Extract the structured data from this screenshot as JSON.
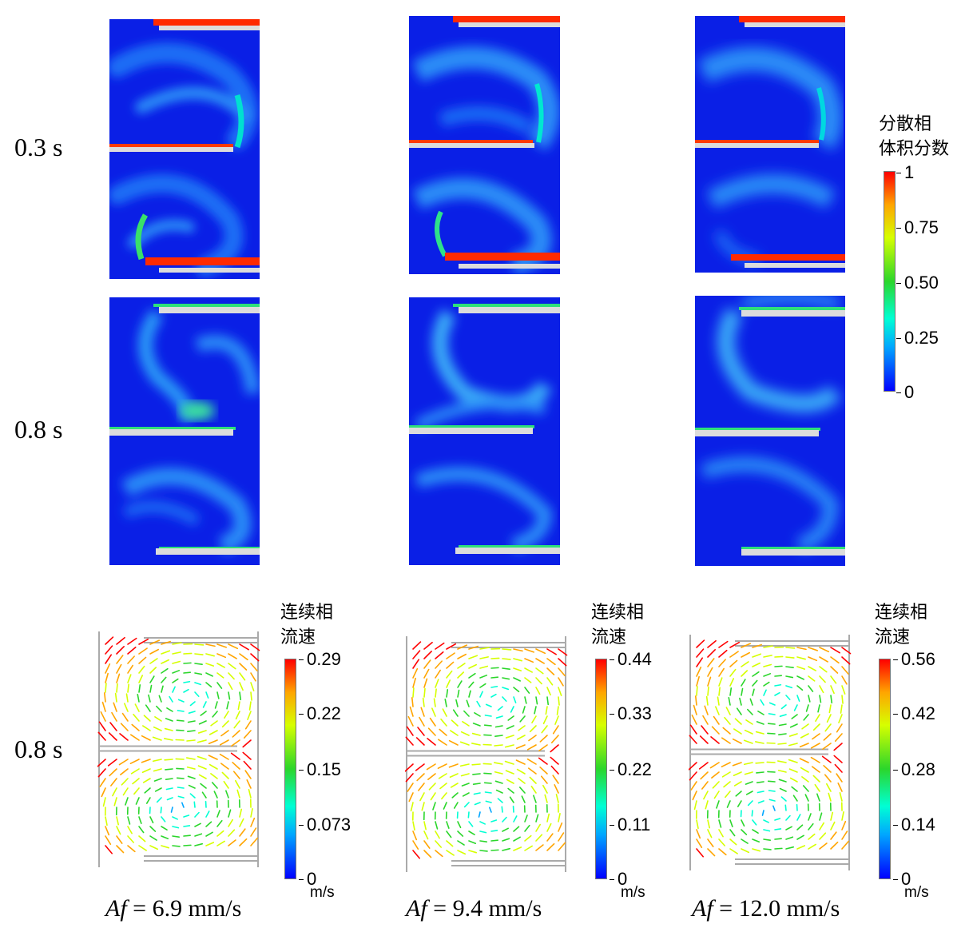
{
  "chart_data": {
    "type": "contour-and-vector-panels",
    "row_labels": [
      "0.3 s",
      "0.8 s",
      "0.8 s"
    ],
    "column_labels": [
      {
        "symbol": "Af",
        "text": " = 6.9 mm/s"
      },
      {
        "symbol": "Af",
        "text": " = 9.4 mm/s"
      },
      {
        "symbol": "Af",
        "text": " = 12.0 mm/s"
      }
    ],
    "volume_fraction_colorbar": {
      "title": [
        "分散相",
        "体积分数"
      ],
      "ticks": [
        "1",
        "0.75",
        "0.50",
        "0.25",
        "0"
      ],
      "range": [
        0,
        1
      ]
    },
    "velocity_colorbars": [
      {
        "title": [
          "连续相",
          "流速"
        ],
        "ticks": [
          "0.29",
          "0.22",
          "0.15",
          "0.073",
          "0"
        ],
        "unit": "m/s",
        "range": [
          0,
          0.29
        ]
      },
      {
        "title": [
          "连续相",
          "流速"
        ],
        "ticks": [
          "0.44",
          "0.33",
          "0.22",
          "0.11",
          "0"
        ],
        "unit": "m/s",
        "range": [
          0,
          0.44
        ]
      },
      {
        "title": [
          "连续相",
          "流速"
        ],
        "ticks": [
          "0.56",
          "0.42",
          "0.28",
          "0.14",
          "0"
        ],
        "unit": "m/s",
        "range": [
          0,
          0.56
        ]
      }
    ],
    "colormap": [
      "#0000ff",
      "#00a6ff",
      "#00ffd4",
      "#2bd62b",
      "#d6ff00",
      "#ffa500",
      "#ff0000"
    ]
  }
}
